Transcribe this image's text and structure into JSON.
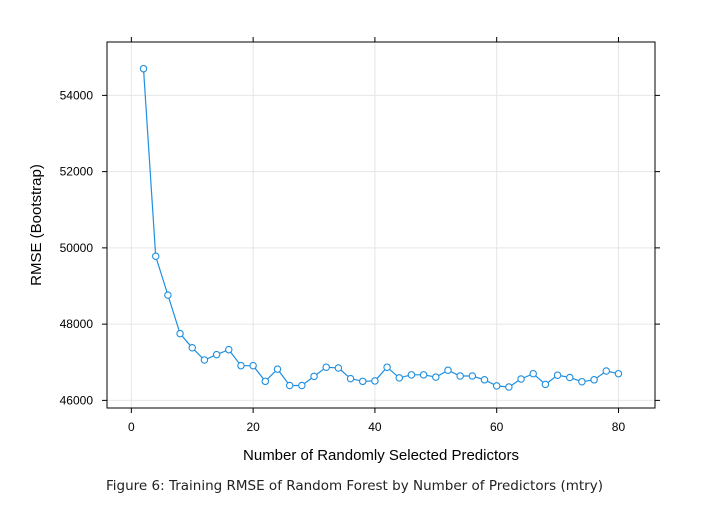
{
  "chart_data": {
    "type": "line",
    "title": "",
    "xlabel": "Number of Randomly Selected Predictors",
    "ylabel": "RMSE (Bootstrap)",
    "xlim": [
      -4,
      86
    ],
    "ylim": [
      45800,
      55400
    ],
    "xticks": [
      0,
      20,
      40,
      60,
      80
    ],
    "yticks": [
      46000,
      48000,
      50000,
      52000,
      54000
    ],
    "grid": true,
    "marker": "open-circle",
    "color": "#1f8fe0",
    "series": [
      {
        "x": [
          2,
          4,
          6,
          8,
          10,
          12,
          14,
          16,
          18,
          20,
          22,
          24,
          26,
          28,
          30,
          32,
          34,
          36,
          38,
          40,
          42,
          44,
          46,
          48,
          50,
          52,
          54,
          56,
          58,
          60,
          62,
          64,
          66,
          68,
          70,
          72,
          74,
          76,
          78,
          80
        ],
        "values": [
          54700,
          49780,
          48760,
          47750,
          47380,
          47060,
          47200,
          47330,
          46910,
          46910,
          46500,
          46820,
          46390,
          46390,
          46630,
          46870,
          46850,
          46570,
          46500,
          46510,
          46870,
          46590,
          46670,
          46670,
          46610,
          46790,
          46640,
          46640,
          46540,
          46380,
          46350,
          46560,
          46700,
          46420,
          46660,
          46600,
          46490,
          46540,
          46770,
          46700
        ]
      }
    ]
  },
  "caption": "Figure 6: Training RMSE of Random Forest by Number of Predictors (mtry)"
}
